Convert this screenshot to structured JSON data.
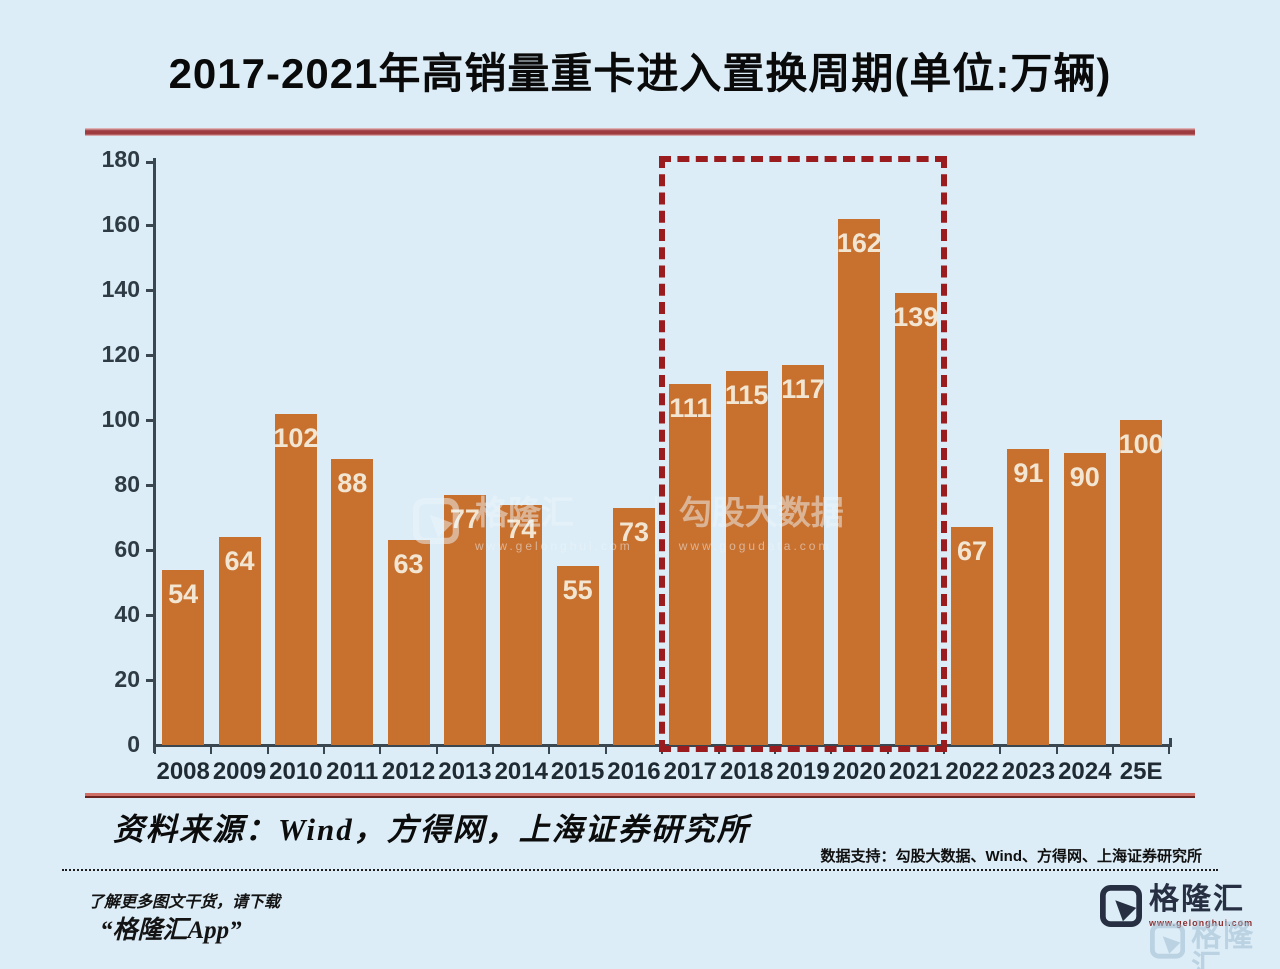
{
  "chart_data": {
    "type": "bar",
    "title": "2017-2021年高销量重卡进入置换周期(单位:万辆)",
    "unit": "万辆",
    "categories": [
      "2008",
      "2009",
      "2010",
      "2011",
      "2012",
      "2013",
      "2014",
      "2015",
      "2016",
      "2017",
      "2018",
      "2019",
      "2020",
      "2021",
      "2022",
      "2023",
      "2024",
      "25E"
    ],
    "values": [
      54,
      64,
      102,
      88,
      63,
      77,
      74,
      55,
      73,
      111,
      115,
      117,
      162,
      139,
      67,
      91,
      90,
      100
    ],
    "xlabel": "",
    "ylabel": "",
    "ylim": [
      0,
      180
    ],
    "ytick_step": 20,
    "grid": false,
    "legend": "none",
    "highlight_range": [
      "2017",
      "2021"
    ],
    "highlight_style": "dashed-red-box"
  },
  "colors": {
    "background": "#dcedf7",
    "bar": "#c8702e",
    "bar_label": "#f2e6d3",
    "axis": "#3a4750",
    "highlight_border": "#9b1c1f",
    "title_underline": "#9e3c40",
    "source_divider": "#cf6f66",
    "logo_navy": "#273043"
  },
  "source": {
    "text": "资料来源：Wind，方得网，上海证券研究所"
  },
  "support": {
    "text": "数据支持：勾股大数据、Wind、方得网、上海证券研究所"
  },
  "watermark": {
    "brand": "格隆汇",
    "brand_url": "www.gelonghui.com",
    "partner": "勾股大数据",
    "partner_url": "www.gogudata.com"
  },
  "footer": {
    "hint": "了解更多图文干货，请下载",
    "app": "“格隆汇App”"
  },
  "logo": {
    "brand": "格隆汇",
    "url": "www.gelonghui.com"
  }
}
